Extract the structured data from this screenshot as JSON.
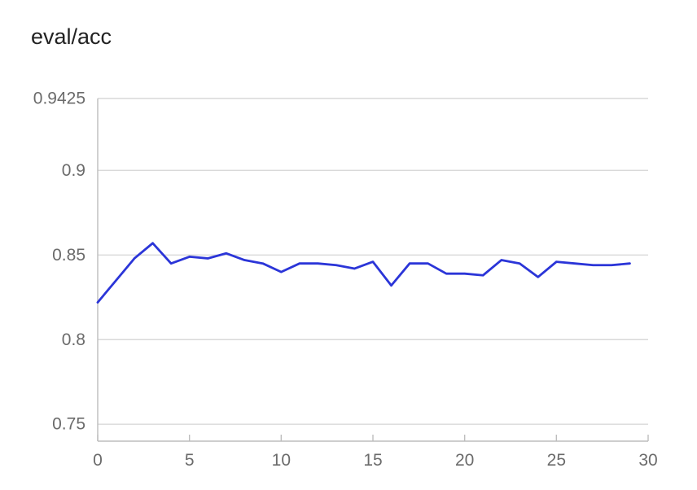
{
  "chart_data": {
    "type": "line",
    "title": "eval/acc",
    "xlabel": "",
    "ylabel": "",
    "xlim": [
      0,
      30
    ],
    "ylim": [
      0.74,
      0.9425
    ],
    "xticks": [
      0,
      5,
      10,
      15,
      20,
      25,
      30
    ],
    "xtick_labels": [
      "0",
      "5",
      "10",
      "15",
      "20",
      "25",
      "30"
    ],
    "yticks": [
      0.75,
      0.8,
      0.85,
      0.9,
      0.9425
    ],
    "ytick_labels": [
      "0.75",
      "0.8",
      "0.85",
      "0.9",
      "0.9425"
    ],
    "grid": true,
    "legend": "none",
    "series": [
      {
        "color": "#2b35d8",
        "x": [
          0,
          1,
          2,
          3,
          4,
          5,
          6,
          7,
          8,
          9,
          10,
          11,
          12,
          13,
          14,
          15,
          16,
          17,
          18,
          19,
          20,
          21,
          22,
          23,
          24,
          25,
          26,
          27,
          28,
          29
        ],
        "values": [
          0.822,
          0.835,
          0.848,
          0.857,
          0.845,
          0.849,
          0.848,
          0.851,
          0.847,
          0.845,
          0.84,
          0.845,
          0.845,
          0.844,
          0.842,
          0.846,
          0.832,
          0.845,
          0.845,
          0.839,
          0.839,
          0.838,
          0.847,
          0.845,
          0.837,
          0.846,
          0.845,
          0.844,
          0.844,
          0.845
        ]
      }
    ]
  }
}
